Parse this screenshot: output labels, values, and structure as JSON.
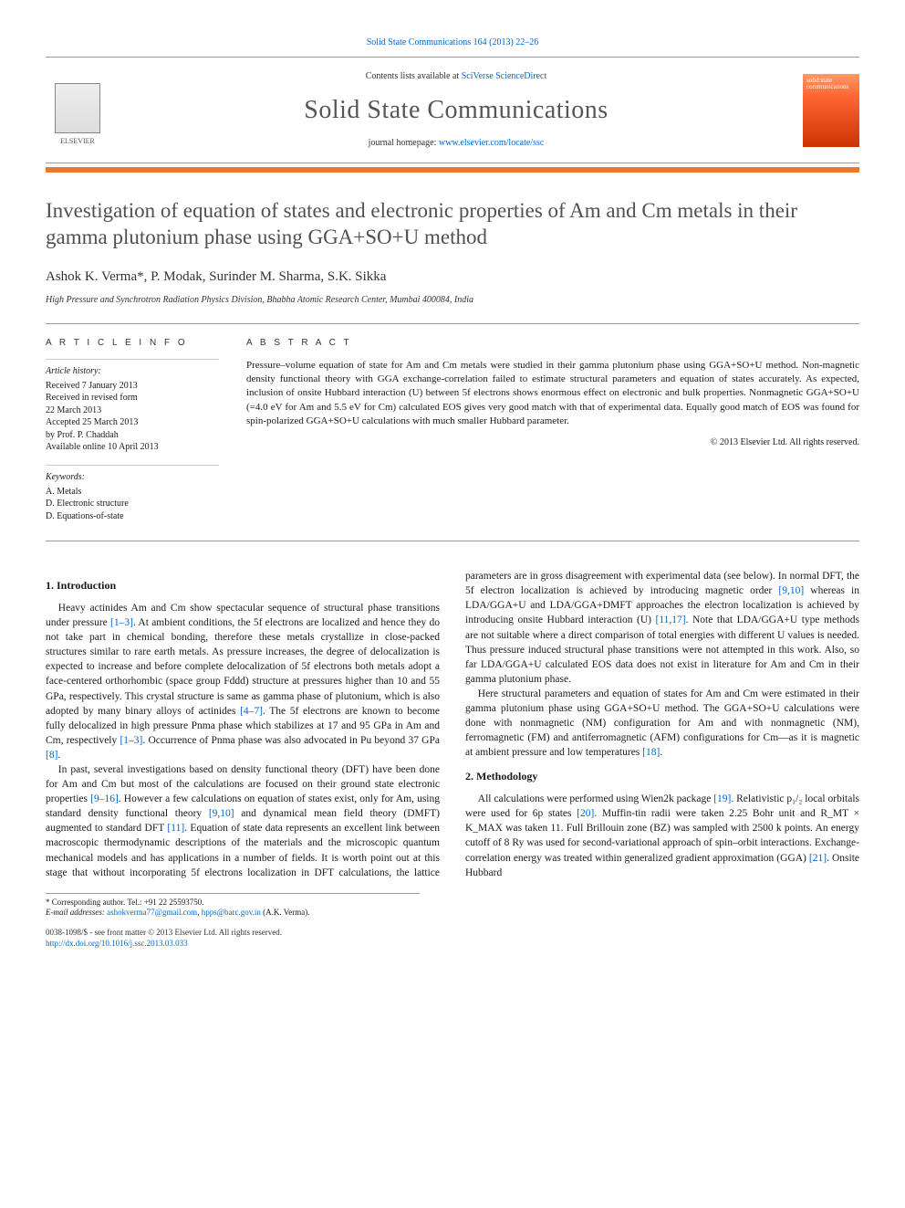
{
  "header": {
    "journal_ref": "Solid State Communications 164 (2013) 22–26",
    "contents_prefix": "Contents lists available at ",
    "contents_link": "SciVerse ScienceDirect",
    "journal_name": "Solid State Communications",
    "homepage_prefix": "journal homepage: ",
    "homepage_url": "www.elsevier.com/locate/ssc",
    "elsevier_label": "ELSEVIER",
    "cover_text": "solid state communications"
  },
  "article": {
    "title": "Investigation of equation of states and electronic properties of Am and Cm metals in their gamma plutonium phase using GGA+SO+U method",
    "authors_html": "Ashok K. Verma*, P. Modak, Surinder M. Sharma, S.K. Sikka",
    "corresponding_mark": "*",
    "affiliation": "High Pressure and Synchrotron Radiation Physics Division, Bhabha Atomic Research Center, Mumbai 400084, India"
  },
  "info": {
    "heading": "A R T I C L E   I N F O",
    "history_label": "Article history:",
    "history": [
      "Received 7 January 2013",
      "Received in revised form",
      "22 March 2013",
      "Accepted 25 March 2013",
      "by Prof. P. Chaddah",
      "Available online 10 April 2013"
    ],
    "keywords_label": "Keywords:",
    "keywords": [
      "A. Metals",
      "D. Electronic structure",
      "D. Equations-of-state"
    ]
  },
  "abstract": {
    "heading": "A B S T R A C T",
    "text": "Pressure–volume equation of state for Am and Cm metals were studied in their gamma plutonium phase using GGA+SO+U method. Non-magnetic density functional theory with GGA exchange-correlation failed to estimate structural parameters and equation of states accurately. As expected, inclusion of onsite Hubbard interaction (U) between 5f electrons shows enormous effect on electronic and bulk properties. Nonmagnetic GGA+SO+U (=4.0 eV for Am and 5.5 eV for Cm) calculated EOS gives very good match with that of experimental data. Equally good match of EOS was found for spin-polarized GGA+SO+U calculations with much smaller Hubbard parameter.",
    "copyright": "© 2013 Elsevier Ltd. All rights reserved."
  },
  "body": {
    "sec1_heading": "1. Introduction",
    "p1a": "Heavy actinides Am and Cm show spectacular sequence of structural phase transitions under pressure ",
    "p1_ref1": "[1–3]",
    "p1b": ". At ambient conditions, the 5f electrons are localized and hence they do not take part in chemical bonding, therefore these metals crystallize in close-packed structures similar to rare earth metals. As pressure increases, the degree of delocalization is expected to increase and before complete delocalization of 5f electrons both metals adopt a face-centered orthorhombic (space group Fddd) structure at pressures higher than 10 and 55 GPa, respectively. This crystal structure is same as gamma phase of plutonium, which is also adopted by many binary alloys of actinides ",
    "p1_ref2": "[4–7]",
    "p1c": ". The 5f electrons are known to become fully delocalized in high pressure Pnma phase which stabilizes at 17 and 95 GPa in Am and Cm, respectively ",
    "p1_ref3": "[1–3]",
    "p1d": ". Occurrence of Pnma phase was also advocated in Pu beyond 37 GPa ",
    "p1_ref4": "[8]",
    "p1e": ".",
    "p2a": "In past, several investigations based on density functional theory (DFT) have been done for Am and Cm but most of the calculations are focused on their ground state electronic properties ",
    "p2_ref1": "[9–16]",
    "p2b": ". However a few calculations on equation of states exist, only for Am, using standard density functional theory ",
    "p2_ref2": "[9,10]",
    "p2c": " and dynamical mean field theory (DMFT) augmented to standard DFT ",
    "p2_ref3": "[11]",
    "p2d": ". Equation of state data represents an excellent link between macroscopic thermodynamic descriptions of the materials and the microscopic quantum mechanical models and has applications in a ",
    "p3a": "number of fields. It is worth point out at this stage that without incorporating 5f electrons localization in DFT calculations, the lattice parameters are in gross disagreement with experimental data (see below). In normal DFT, the 5f electron localization is achieved by introducing magnetic order ",
    "p3_ref1": "[9,10]",
    "p3b": " whereas in LDA/GGA+U and LDA/GGA+DMFT approaches the electron localization is achieved by introducing onsite Hubbard interaction (U) ",
    "p3_ref2": "[11,17]",
    "p3c": ". Note that LDA/GGA+U type methods are not suitable where a direct comparison of total energies with different U values is needed. Thus pressure induced structural phase transitions were not attempted in this work. Also, so far LDA/GGA+U calculated EOS data does not exist in literature for Am and Cm in their gamma plutonium phase.",
    "p4a": "Here structural parameters and equation of states for Am and Cm were estimated in their gamma plutonium phase using GGA+SO+U method. The GGA+SO+U calculations were done with nonmagnetic (NM) configuration for Am and with nonmagnetic (NM), ferromagnetic (FM) and antiferromagnetic (AFM) configurations for Cm—as it is magnetic at ambient pressure and low temperatures ",
    "p4_ref1": "[18]",
    "p4b": ".",
    "sec2_heading": "2. Methodology",
    "p5a": "All calculations were performed using Wien2k package ",
    "p5_ref1": "[19]",
    "p5b": ". Relativistic p₁/₂ local orbitals were used for 6p states ",
    "p5_ref2": "[20]",
    "p5c": ". Muffin-tin radii were taken 2.25 Bohr unit and R_MT × K_MAX was taken 11. Full Brillouin zone (BZ) was sampled with 2500 k points. An energy cutoff of 8 Ry was used for second-variational approach of spin–orbit interactions. Exchange-correlation energy was treated within generalized gradient approximation (GGA) ",
    "p5_ref3": "[21]",
    "p5d": ". Onsite Hubbard"
  },
  "footnotes": {
    "corr": "* Corresponding author. Tel.: +91 22 25593750.",
    "email_label": "E-mail addresses:",
    "email1": "ashokverma77@gmail.com",
    "email_sep": ", ",
    "email2": "hpps@barc.gov.in",
    "email_suffix": " (A.K. Verma)."
  },
  "footer": {
    "issn": "0038-1098/$ - see front matter © 2013 Elsevier Ltd. All rights reserved.",
    "doi": "http://dx.doi.org/10.1016/j.ssc.2013.03.033"
  },
  "colors": {
    "link": "#0066cc",
    "orange_bar": "#e8792f",
    "title_gray": "#505050"
  }
}
